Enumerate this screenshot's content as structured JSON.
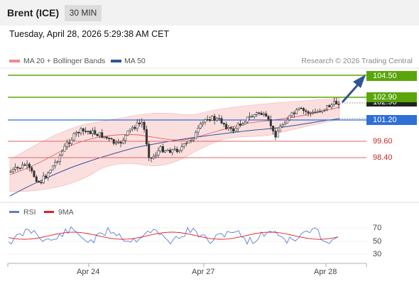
{
  "header": {
    "symbol": "Brent (ICE)",
    "timeframe": "30 MIN"
  },
  "timestamp": "Tuesday, April 28, 2026 5:29:38 AM CET",
  "legend": [
    {
      "label": "MA 20 + Bollinger Bands",
      "color": "#f08a8a"
    },
    {
      "label": "MA 50",
      "color": "#2f5597"
    }
  ],
  "credit": "Research © 2026 Trading Central",
  "levels": {
    "r2": "104.50",
    "r1": "102.90",
    "last_price": "102.90",
    "pivot": "101.20",
    "s1": "99.60",
    "s2": "98.40"
  },
  "colors": {
    "resistance": "#5aa60a",
    "pivot": "#2f6fd6",
    "support": "#e06666",
    "arrow": "#2f5597",
    "up_candle": "#ffffff",
    "down_candle": "#333333"
  },
  "rsi_legend": [
    {
      "label": "RSI",
      "color": "#5b7fd1"
    },
    {
      "label": "9MA",
      "color": "#e02020"
    }
  ],
  "rsi_levels": [
    "70",
    "50",
    "30"
  ],
  "x_axis": [
    "Apr 24",
    "Apr 27",
    "Apr 28"
  ]
}
